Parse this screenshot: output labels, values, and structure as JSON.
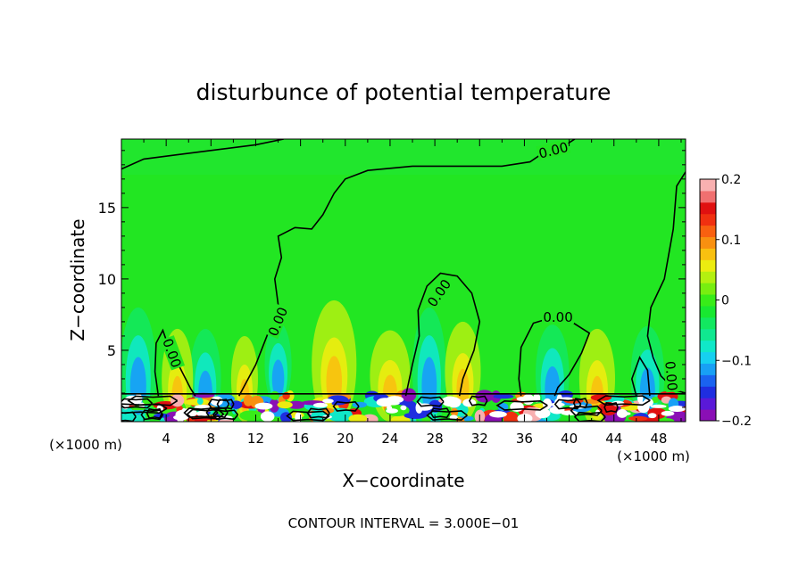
{
  "chart_data": {
    "type": "heatmap",
    "title": "disturbunce of potential temperature",
    "xlabel": "X−coordinate",
    "ylabel": "Z−coordinate",
    "x_unit_left": "(×1000 m)",
    "x_unit_right": "(×1000 m)",
    "xlim": [
      0,
      50.4
    ],
    "ylim": [
      0,
      19.8
    ],
    "x_ticks": [
      4,
      8,
      12,
      16,
      20,
      24,
      28,
      32,
      36,
      40,
      44,
      48
    ],
    "y_ticks": [
      5,
      10,
      15
    ],
    "colorbar": {
      "min": -0.2,
      "max": 0.2,
      "tick_values": [
        0.2,
        0.1,
        0,
        -0.1,
        -0.2
      ],
      "tick_labels": [
        "0.2",
        "0.1",
        "0",
        "−0.1",
        "−0.2"
      ],
      "colors": [
        "#8a0fb5",
        "#5a19d8",
        "#1f2ee0",
        "#1a63f0",
        "#18a0f5",
        "#16d0f0",
        "#10e8c8",
        "#10e890",
        "#12e860",
        "#18e830",
        "#38ec18",
        "#78ee10",
        "#b4f010",
        "#ecec10",
        "#f8c010",
        "#f89010",
        "#f86010",
        "#f03010",
        "#e01010",
        "#f07070",
        "#f8b0b0"
      ]
    },
    "contour_labels": [
      "0.00",
      "0.00",
      "0.00",
      "0.00",
      "0.00",
      "0.00",
      "0.00"
    ],
    "contour_interval_text": "CONTOUR INTERVAL = 3.000E−01"
  }
}
